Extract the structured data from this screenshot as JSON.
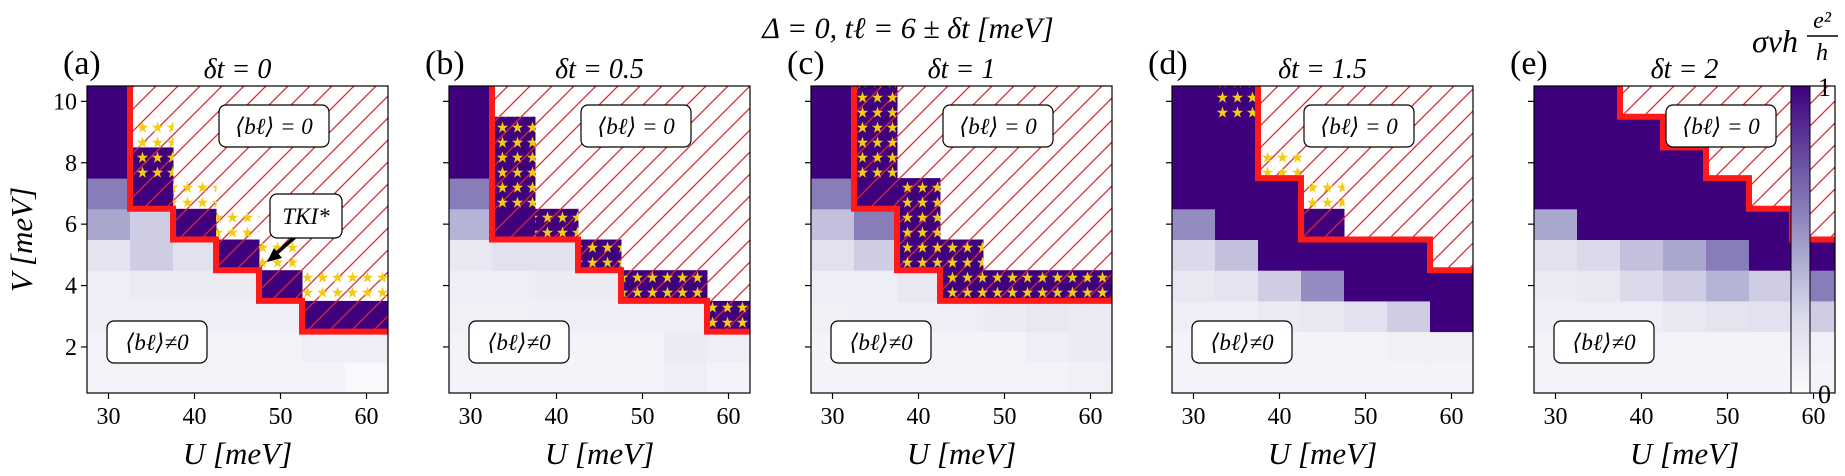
{
  "figure": {
    "suptitle": "Δ = 0, tℓ = 6 ± δt [meV]",
    "colorbar": {
      "label": "σvh",
      "unit_numerator": "e²",
      "unit_denominator": "h",
      "tick_min": "0",
      "tick_max": "1",
      "range": [
        0,
        1
      ]
    },
    "legend_labels": {
      "upper_region": "⟨bℓ⟩ = 0",
      "lower_region": "⟨bℓ⟩≠0",
      "tki_annotation": "TKI*"
    }
  },
  "chart_data": [
    {
      "type": "heatmap",
      "panel": "(a)",
      "title": "δt = 0",
      "xlabel": "U [meV]",
      "ylabel": "V [meV]",
      "xticks": [
        30,
        40,
        50,
        60
      ],
      "yticks": [
        2,
        4,
        6,
        8,
        10
      ],
      "xlim": [
        27.5,
        62.5
      ],
      "ylim": [
        0.5,
        10.5
      ],
      "x": [
        30,
        35,
        40,
        45,
        50,
        55,
        60
      ],
      "y": [
        1,
        2,
        3,
        4,
        5,
        6,
        7,
        8,
        9,
        10
      ],
      "values": [
        [
          0.06,
          0.06,
          0.06,
          0.06,
          0.06,
          0.06,
          0.02
        ],
        [
          0.06,
          0.06,
          0.06,
          0.06,
          0.06,
          0.1,
          0.1
        ],
        [
          0.1,
          0.1,
          0.1,
          0.1,
          0.1,
          1,
          1
        ],
        [
          0.1,
          0.12,
          0.12,
          0.12,
          1,
          null,
          null
        ],
        [
          0.18,
          0.3,
          0.2,
          1,
          null,
          null,
          null
        ],
        [
          0.45,
          0.3,
          1,
          null,
          null,
          null,
          null
        ],
        [
          0.6,
          1,
          null,
          null,
          null,
          null,
          null
        ],
        [
          1,
          1,
          null,
          null,
          null,
          null,
          null
        ],
        [
          1,
          null,
          null,
          null,
          null,
          null,
          null
        ],
        [
          1,
          null,
          null,
          null,
          null,
          null,
          null
        ]
      ],
      "trivial_boundary_start_col": [
        7,
        7,
        5,
        4,
        3,
        2,
        1,
        1,
        1,
        1
      ],
      "tki_star_phase": [
        [
          3,
          5
        ],
        [
          3,
          6
        ],
        [
          4,
          4
        ],
        [
          5,
          3
        ],
        [
          6,
          2
        ],
        [
          7,
          1
        ],
        [
          8,
          1
        ]
      ],
      "tki_annotation": true
    },
    {
      "type": "heatmap",
      "panel": "(b)",
      "title": "δt = 0.5",
      "xlabel": "U [meV]",
      "ylabel": "",
      "xticks": [
        30,
        40,
        50,
        60
      ],
      "yticks": [
        2,
        4,
        6,
        8,
        10
      ],
      "xlim": [
        27.5,
        62.5
      ],
      "ylim": [
        0.5,
        10.5
      ],
      "x": [
        30,
        35,
        40,
        45,
        50,
        55,
        60
      ],
      "y": [
        1,
        2,
        3,
        4,
        5,
        6,
        7,
        8,
        9,
        10
      ],
      "values": [
        [
          0.06,
          0.06,
          0.06,
          0.06,
          0.06,
          0.1,
          0.06
        ],
        [
          0.06,
          0.06,
          0.06,
          0.06,
          0.06,
          0.12,
          0.1
        ],
        [
          0.08,
          0.08,
          0.1,
          0.1,
          0.1,
          0.1,
          1
        ],
        [
          0.1,
          0.1,
          0.12,
          0.12,
          1,
          1,
          null
        ],
        [
          0.15,
          0.2,
          0.2,
          1,
          null,
          null,
          null
        ],
        [
          0.4,
          1,
          1,
          null,
          null,
          null,
          null
        ],
        [
          0.6,
          1,
          null,
          null,
          null,
          null,
          null
        ],
        [
          1,
          1,
          null,
          null,
          null,
          null,
          null
        ],
        [
          1,
          1,
          null,
          null,
          null,
          null,
          null
        ],
        [
          1,
          null,
          null,
          null,
          null,
          null,
          null
        ]
      ],
      "trivial_boundary_start_col": [
        7,
        7,
        6,
        4,
        3,
        1,
        1,
        1,
        1,
        1
      ],
      "tki_star_phase": [
        [
          2,
          6
        ],
        [
          3,
          4
        ],
        [
          3,
          5
        ],
        [
          4,
          3
        ],
        [
          5,
          2
        ],
        [
          6,
          1
        ],
        [
          7,
          1
        ],
        [
          8,
          1
        ]
      ],
      "tki_annotation": false
    },
    {
      "type": "heatmap",
      "panel": "(c)",
      "title": "δt = 1",
      "xlabel": "U [meV]",
      "ylabel": "",
      "xticks": [
        30,
        40,
        50,
        60
      ],
      "yticks": [
        2,
        4,
        6,
        8,
        10
      ],
      "xlim": [
        27.5,
        62.5
      ],
      "ylim": [
        0.5,
        10.5
      ],
      "x": [
        30,
        35,
        40,
        45,
        50,
        55,
        60
      ],
      "y": [
        1,
        2,
        3,
        4,
        5,
        6,
        7,
        8,
        9,
        10
      ],
      "values": [
        [
          0.06,
          0.06,
          0.06,
          0.06,
          0.06,
          0.06,
          0.08
        ],
        [
          0.06,
          0.06,
          0.06,
          0.06,
          0.06,
          0.1,
          0.12
        ],
        [
          0.08,
          0.1,
          0.1,
          0.1,
          0.12,
          0.15,
          0.12
        ],
        [
          0.1,
          0.1,
          0.15,
          1,
          1,
          1,
          1
        ],
        [
          0.2,
          0.3,
          1,
          1,
          null,
          null,
          null
        ],
        [
          0.35,
          0.6,
          1,
          null,
          null,
          null,
          null
        ],
        [
          0.6,
          1,
          1,
          null,
          null,
          null,
          null
        ],
        [
          1,
          1,
          null,
          null,
          null,
          null,
          null
        ],
        [
          1,
          1,
          null,
          null,
          null,
          null,
          null
        ],
        [
          1,
          1,
          null,
          null,
          null,
          null,
          null
        ]
      ],
      "trivial_boundary_start_col": [
        7,
        7,
        7,
        3,
        2,
        2,
        1,
        1,
        1,
        1
      ],
      "tki_star_phase": [
        [
          3,
          3
        ],
        [
          3,
          4
        ],
        [
          3,
          5
        ],
        [
          3,
          6
        ],
        [
          4,
          2
        ],
        [
          4,
          3
        ],
        [
          5,
          2
        ],
        [
          6,
          2
        ],
        [
          7,
          1
        ],
        [
          8,
          1
        ],
        [
          9,
          1
        ]
      ],
      "tki_annotation": false
    },
    {
      "type": "heatmap",
      "panel": "(d)",
      "title": "δt = 1.5",
      "xlabel": "U [meV]",
      "ylabel": "",
      "xticks": [
        30,
        40,
        50,
        60
      ],
      "yticks": [
        2,
        4,
        6,
        8,
        10
      ],
      "xlim": [
        27.5,
        62.5
      ],
      "ylim": [
        0.5,
        10.5
      ],
      "x": [
        30,
        35,
        40,
        45,
        50,
        55,
        60
      ],
      "y": [
        1,
        2,
        3,
        4,
        5,
        6,
        7,
        8,
        9,
        10
      ],
      "values": [
        [
          0.06,
          0.06,
          0.06,
          0.06,
          0.06,
          0.06,
          0.06
        ],
        [
          0.06,
          0.06,
          0.06,
          0.06,
          0.06,
          0.08,
          0.08
        ],
        [
          0.1,
          0.1,
          0.12,
          0.15,
          0.2,
          0.3,
          1
        ],
        [
          0.15,
          0.18,
          0.3,
          0.55,
          1,
          1,
          1
        ],
        [
          0.25,
          0.35,
          1,
          1,
          1,
          1,
          null
        ],
        [
          0.55,
          1,
          1,
          1,
          null,
          null,
          null
        ],
        [
          1,
          1,
          1,
          null,
          null,
          null,
          null
        ],
        [
          1,
          1,
          null,
          null,
          null,
          null,
          null
        ],
        [
          1,
          1,
          null,
          null,
          null,
          null,
          null
        ],
        [
          1,
          1,
          null,
          null,
          null,
          null,
          null
        ]
      ],
      "trivial_boundary_start_col": [
        7,
        7,
        7,
        7,
        6,
        3,
        3,
        2,
        2,
        2
      ],
      "tki_star_phase": [
        [
          6,
          3
        ],
        [
          7,
          2
        ],
        [
          9,
          1
        ]
      ],
      "tki_annotation": false
    },
    {
      "type": "heatmap",
      "panel": "(e)",
      "title": "δt = 2",
      "xlabel": "U [meV]",
      "ylabel": "",
      "xticks": [
        30,
        40,
        50,
        60
      ],
      "yticks": [
        2,
        4,
        6,
        8,
        10
      ],
      "xlim": [
        27.5,
        62.5
      ],
      "ylim": [
        0.5,
        10.5
      ],
      "x": [
        30,
        35,
        40,
        45,
        50,
        55,
        60
      ],
      "y": [
        1,
        2,
        3,
        4,
        5,
        6,
        7,
        8,
        9,
        10
      ],
      "values": [
        [
          0.06,
          0.06,
          0.06,
          0.06,
          0.06,
          0.06,
          0.06
        ],
        [
          0.06,
          0.06,
          0.06,
          0.06,
          0.06,
          0.06,
          0.08
        ],
        [
          0.1,
          0.1,
          0.1,
          0.15,
          0.18,
          0.2,
          0.3
        ],
        [
          0.12,
          0.15,
          0.25,
          0.3,
          0.4,
          0.3,
          0.6
        ],
        [
          0.2,
          0.25,
          0.35,
          0.45,
          0.6,
          1,
          1
        ],
        [
          0.45,
          1,
          1,
          1,
          1,
          1,
          null
        ],
        [
          1,
          1,
          1,
          1,
          1,
          null,
          null
        ],
        [
          1,
          1,
          1,
          1,
          null,
          null,
          null
        ],
        [
          1,
          1,
          1,
          null,
          null,
          null,
          null
        ],
        [
          1,
          1,
          null,
          null,
          null,
          null,
          null
        ]
      ],
      "trivial_boundary_start_col": [
        7,
        7,
        7,
        7,
        7,
        6,
        5,
        4,
        3,
        2
      ],
      "tki_star_phase": [],
      "tki_annotation": false
    }
  ]
}
